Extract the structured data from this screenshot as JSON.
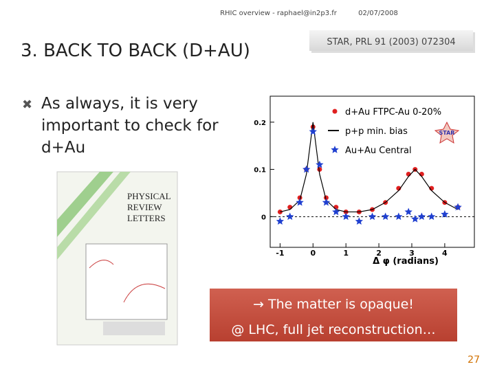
{
  "header": {
    "author": "RHIC overview - raphael@in2p3.fr",
    "date": "02/07/2008"
  },
  "title": "3. BACK TO BACK (D+AU)",
  "citation": "STAR, PRL 91 (2003) 072304",
  "bullet": {
    "lines": [
      "As always, it is very",
      "important to check for",
      "d+Au"
    ]
  },
  "cover": {
    "lines": [
      "PHYSICAL",
      "REVIEW",
      "LETTERS"
    ]
  },
  "chart_data": {
    "type": "scatter",
    "x_label": "Δ φ (radians)",
    "x": [
      -1.0,
      -0.7,
      -0.4,
      -0.2,
      0,
      0.2,
      0.4,
      0.7,
      1.0,
      1.4,
      1.8,
      2.2,
      2.6,
      2.9,
      3.1,
      3.3,
      3.6,
      4.0,
      4.4
    ],
    "series": [
      {
        "name": "d+Au FTPC-Au 0-20%",
        "color": "#e02020",
        "marker": "dot",
        "values": [
          0.01,
          0.02,
          0.04,
          0.1,
          0.19,
          0.1,
          0.04,
          0.02,
          0.01,
          0.01,
          0.015,
          0.03,
          0.06,
          0.09,
          0.1,
          0.09,
          0.06,
          0.03,
          0.02
        ]
      },
      {
        "name": "p+p min. bias",
        "color": "#000000",
        "marker": "line",
        "values": [
          0.01,
          0.015,
          0.035,
          0.09,
          0.2,
          0.09,
          0.035,
          0.015,
          0.01,
          0.01,
          0.015,
          0.03,
          0.055,
          0.085,
          0.1,
          0.085,
          0.055,
          0.03,
          0.015
        ]
      },
      {
        "name": "Au+Au Central",
        "color": "#2040d0",
        "marker": "star",
        "values": [
          -0.01,
          0.0,
          0.03,
          0.1,
          0.18,
          0.11,
          0.03,
          0.01,
          0.0,
          -0.01,
          0.0,
          0.0,
          0.0,
          0.01,
          -0.005,
          0.0,
          0.0,
          0.005,
          0.02
        ]
      }
    ],
    "xlim": [
      -1.3,
      4.9
    ],
    "ylim": [
      -0.065,
      0.255
    ],
    "xticks": [
      -1,
      0,
      1,
      2,
      3,
      4
    ],
    "yticks": [
      0,
      0.1,
      0.2
    ]
  },
  "callout": {
    "lines": [
      "→ The matter is opaque!",
      "@ LHC, full jet reconstruction…"
    ]
  },
  "page_number": "27"
}
